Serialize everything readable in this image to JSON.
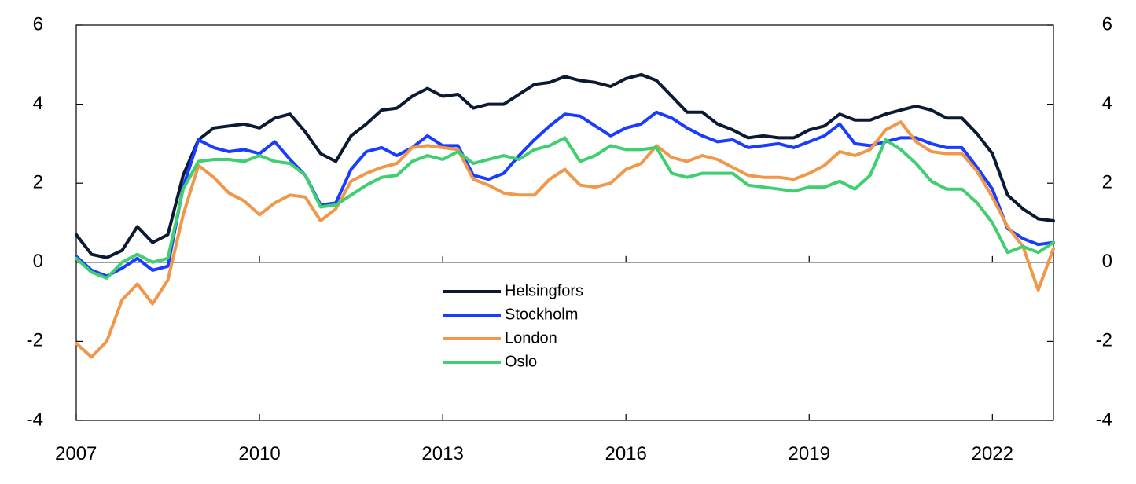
{
  "chart_data": {
    "type": "line",
    "title": "",
    "xlabel": "",
    "ylabel": "",
    "ylim": [
      -4,
      6
    ],
    "xlim": [
      2007.0,
      2023.0
    ],
    "yticks": [
      6,
      4,
      2,
      0,
      -2,
      -4
    ],
    "ytick_labels": [
      "6",
      "4",
      "2",
      "0",
      "-2",
      "-4"
    ],
    "xticks": [
      2007,
      2010,
      2013,
      2016,
      2019,
      2022
    ],
    "xtick_labels": [
      "2007",
      "2010",
      "2013",
      "2016",
      "2019",
      "2022"
    ],
    "grid": false,
    "secondary_y_axis": true,
    "zero_line": true,
    "legend_position": "center",
    "x": [
      2007.0,
      2007.25,
      2007.5,
      2007.75,
      2008.0,
      2008.25,
      2008.5,
      2008.75,
      2009.0,
      2009.25,
      2009.5,
      2009.75,
      2010.0,
      2010.25,
      2010.5,
      2010.75,
      2011.0,
      2011.25,
      2011.5,
      2011.75,
      2012.0,
      2012.25,
      2012.5,
      2012.75,
      2013.0,
      2013.25,
      2013.5,
      2013.75,
      2014.0,
      2014.25,
      2014.5,
      2014.75,
      2015.0,
      2015.25,
      2015.5,
      2015.75,
      2016.0,
      2016.25,
      2016.5,
      2016.75,
      2017.0,
      2017.25,
      2017.5,
      2017.75,
      2018.0,
      2018.25,
      2018.5,
      2018.75,
      2019.0,
      2019.25,
      2019.5,
      2019.75,
      2020.0,
      2020.25,
      2020.5,
      2020.75,
      2021.0,
      2021.25,
      2021.5,
      2021.75,
      2022.0,
      2022.25,
      2022.5,
      2022.75,
      2023.0
    ],
    "series": [
      {
        "name": "Helsingfors",
        "color": "#0b1a33",
        "values": [
          0.7,
          0.2,
          0.12,
          0.3,
          0.9,
          0.5,
          0.7,
          2.2,
          3.1,
          3.4,
          3.45,
          3.5,
          3.4,
          3.65,
          3.75,
          3.3,
          2.75,
          2.55,
          3.2,
          3.5,
          3.85,
          3.9,
          4.2,
          4.4,
          4.2,
          4.25,
          3.9,
          4.0,
          4.0,
          4.25,
          4.5,
          4.55,
          4.7,
          4.6,
          4.55,
          4.45,
          4.65,
          4.75,
          4.6,
          4.2,
          3.8,
          3.8,
          3.5,
          3.35,
          3.15,
          3.2,
          3.15,
          3.15,
          3.35,
          3.45,
          3.75,
          3.6,
          3.6,
          3.75,
          3.85,
          3.95,
          3.85,
          3.65,
          3.65,
          3.25,
          2.75,
          1.7,
          1.35,
          1.1,
          1.05
        ]
      },
      {
        "name": "Stockholm",
        "color": "#1a3cff",
        "values": [
          0.15,
          -0.2,
          -0.35,
          -0.15,
          0.1,
          -0.2,
          -0.1,
          1.9,
          3.1,
          2.9,
          2.8,
          2.85,
          2.75,
          3.05,
          2.6,
          2.2,
          1.45,
          1.5,
          2.35,
          2.8,
          2.9,
          2.7,
          2.9,
          3.2,
          2.95,
          2.95,
          2.2,
          2.1,
          2.25,
          2.7,
          3.1,
          3.45,
          3.75,
          3.7,
          3.45,
          3.2,
          3.4,
          3.5,
          3.8,
          3.65,
          3.4,
          3.2,
          3.05,
          3.1,
          2.9,
          2.95,
          3.0,
          2.9,
          3.05,
          3.2,
          3.5,
          3.0,
          2.95,
          3.05,
          3.15,
          3.15,
          3.0,
          2.9,
          2.9,
          2.4,
          1.85,
          0.85,
          0.6,
          0.45,
          0.5
        ]
      },
      {
        "name": "London",
        "color": "#f0974a",
        "values": [
          -2.05,
          -2.4,
          -2.0,
          -0.95,
          -0.55,
          -1.05,
          -0.45,
          1.2,
          2.45,
          2.15,
          1.75,
          1.55,
          1.2,
          1.5,
          1.7,
          1.65,
          1.05,
          1.35,
          2.05,
          2.25,
          2.4,
          2.5,
          2.9,
          2.95,
          2.9,
          2.85,
          2.1,
          1.95,
          1.75,
          1.7,
          1.7,
          2.1,
          2.35,
          1.95,
          1.9,
          2.0,
          2.35,
          2.5,
          2.95,
          2.65,
          2.55,
          2.7,
          2.6,
          2.4,
          2.2,
          2.15,
          2.15,
          2.1,
          2.25,
          2.45,
          2.8,
          2.7,
          2.85,
          3.35,
          3.55,
          3.05,
          2.8,
          2.75,
          2.75,
          2.3,
          1.65,
          0.9,
          0.4,
          -0.7,
          0.35
        ]
      },
      {
        "name": "Oslo",
        "color": "#3fcf70",
        "values": [
          0.1,
          -0.25,
          -0.4,
          0.0,
          0.2,
          0.0,
          0.1,
          1.85,
          2.55,
          2.6,
          2.6,
          2.55,
          2.7,
          2.55,
          2.5,
          2.2,
          1.4,
          1.45,
          1.7,
          1.95,
          2.15,
          2.2,
          2.55,
          2.7,
          2.6,
          2.8,
          2.5,
          2.6,
          2.7,
          2.6,
          2.85,
          2.95,
          3.15,
          2.55,
          2.7,
          2.95,
          2.85,
          2.85,
          2.9,
          2.25,
          2.15,
          2.25,
          2.25,
          2.25,
          1.95,
          1.9,
          1.85,
          1.8,
          1.9,
          1.9,
          2.05,
          1.85,
          2.2,
          3.1,
          2.85,
          2.5,
          2.05,
          1.85,
          1.85,
          1.5,
          1.0,
          0.25,
          0.4,
          0.25,
          0.5
        ]
      }
    ]
  }
}
